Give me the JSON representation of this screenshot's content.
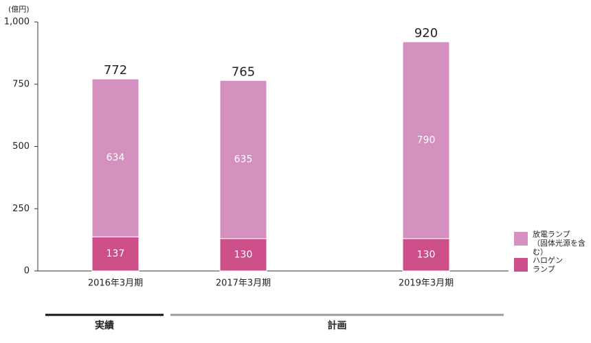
{
  "chart_data": {
    "type": "stacked_bar",
    "y_unit": "(億円)",
    "categories": [
      "2016年3月期",
      "2017年3月期",
      "2019年3月期"
    ],
    "series": [
      {
        "name": "ハロゲン\nランプ",
        "color": "#cc4f8a",
        "values": [
          137,
          130,
          130
        ]
      },
      {
        "name": "放電ランプ\n（固体光源を含む）",
        "color": "#d490bf",
        "values": [
          634,
          635,
          790
        ]
      }
    ],
    "totals": [
      772,
      765,
      920
    ],
    "ylim": [
      0,
      1000
    ],
    "yticks": [
      0,
      250,
      500,
      750,
      {
        "value": 1000,
        "label": "1,000"
      }
    ],
    "periods": [
      "実績",
      "計画"
    ]
  }
}
